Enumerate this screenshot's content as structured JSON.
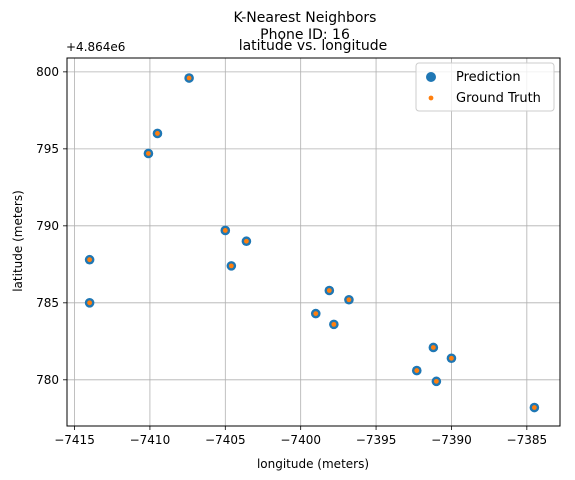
{
  "chart_data": {
    "type": "scatter",
    "title_lines": [
      "K-Nearest Neighbors",
      "Phone ID: 16"
    ],
    "subtitle": "latitude vs. longitude",
    "xlabel": "longitude (meters)",
    "ylabel": "latitude (meters)",
    "y_offset_label": "+4.864e6",
    "xlim": [
      -7415.5,
      -7382.8
    ],
    "ylim": [
      777.0,
      800.9
    ],
    "x_ticks": [
      -7415,
      -7410,
      -7405,
      -7400,
      -7395,
      -7390,
      -7385
    ],
    "y_ticks": [
      780,
      785,
      790,
      795,
      800
    ],
    "grid": true,
    "legend_position": "top-right",
    "series": [
      {
        "name": "Prediction",
        "color": "#1f77b4",
        "marker": "circle-large",
        "points": [
          {
            "x": -7407.4,
            "y": 799.6
          },
          {
            "x": -7409.5,
            "y": 796.0
          },
          {
            "x": -7410.1,
            "y": 794.7
          },
          {
            "x": -7405.0,
            "y": 789.7
          },
          {
            "x": -7403.6,
            "y": 789.0
          },
          {
            "x": -7404.6,
            "y": 787.4
          },
          {
            "x": -7414.0,
            "y": 787.8
          },
          {
            "x": -7414.0,
            "y": 785.0
          },
          {
            "x": -7398.1,
            "y": 785.8
          },
          {
            "x": -7396.8,
            "y": 785.2
          },
          {
            "x": -7399.0,
            "y": 784.3
          },
          {
            "x": -7397.8,
            "y": 783.6
          },
          {
            "x": -7391.2,
            "y": 782.1
          },
          {
            "x": -7390.0,
            "y": 781.4
          },
          {
            "x": -7392.3,
            "y": 780.6
          },
          {
            "x": -7391.0,
            "y": 779.9
          },
          {
            "x": -7384.5,
            "y": 778.2
          }
        ]
      },
      {
        "name": "Ground Truth",
        "color": "#ff7f0e",
        "marker": "circle-small",
        "points": [
          {
            "x": -7407.4,
            "y": 799.6
          },
          {
            "x": -7409.5,
            "y": 796.0
          },
          {
            "x": -7410.1,
            "y": 794.7
          },
          {
            "x": -7405.0,
            "y": 789.7
          },
          {
            "x": -7403.6,
            "y": 789.0
          },
          {
            "x": -7404.6,
            "y": 787.4
          },
          {
            "x": -7414.0,
            "y": 787.8
          },
          {
            "x": -7414.0,
            "y": 785.0
          },
          {
            "x": -7398.1,
            "y": 785.8
          },
          {
            "x": -7396.8,
            "y": 785.2
          },
          {
            "x": -7399.0,
            "y": 784.3
          },
          {
            "x": -7397.8,
            "y": 783.6
          },
          {
            "x": -7391.2,
            "y": 782.1
          },
          {
            "x": -7390.0,
            "y": 781.4
          },
          {
            "x": -7392.3,
            "y": 780.6
          },
          {
            "x": -7391.0,
            "y": 779.9
          },
          {
            "x": -7384.5,
            "y": 778.2
          }
        ]
      }
    ]
  }
}
